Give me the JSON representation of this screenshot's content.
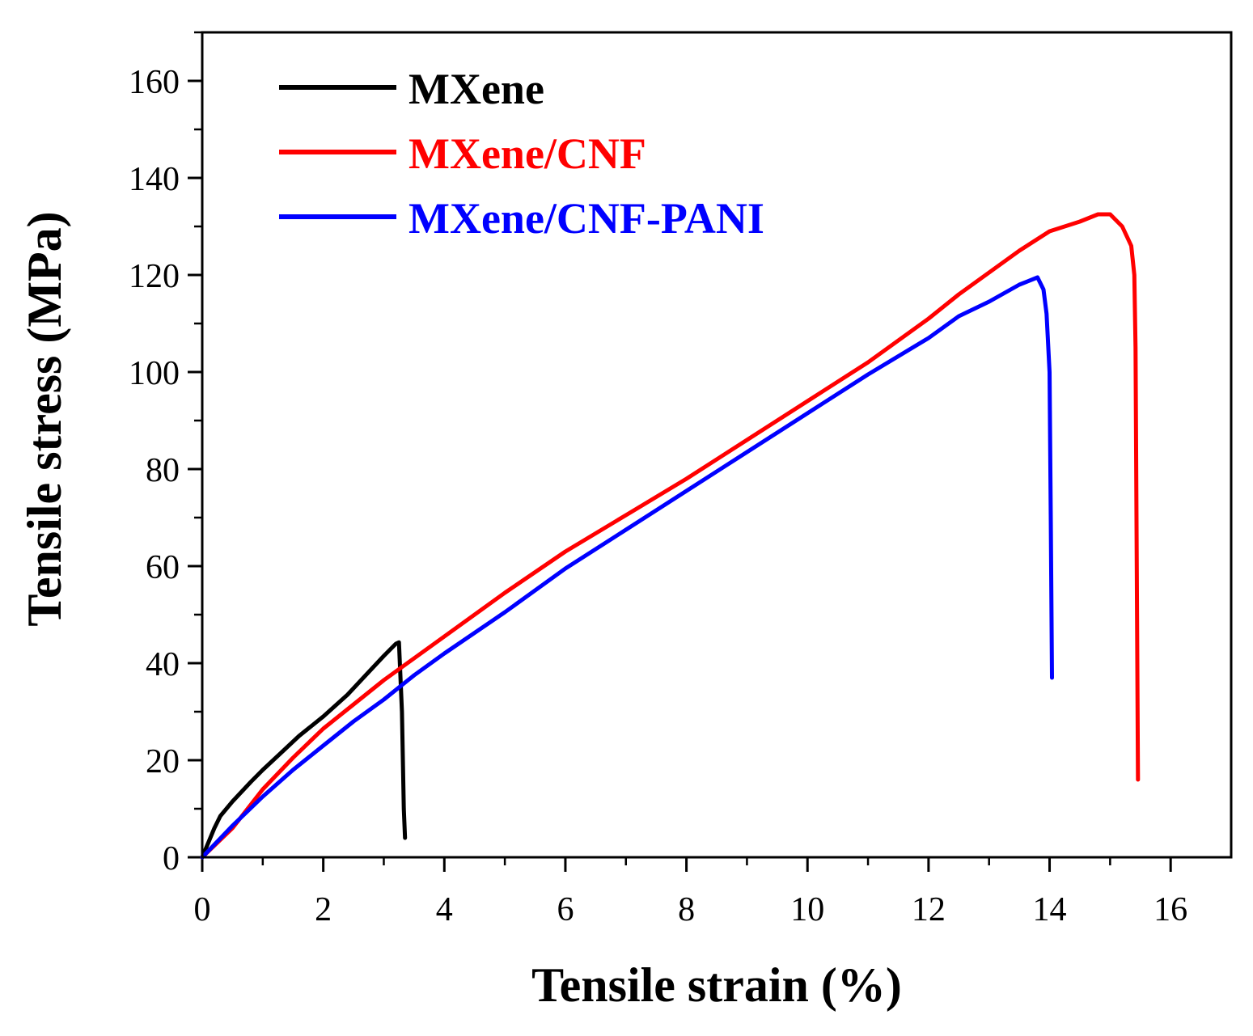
{
  "chart_data": {
    "type": "line",
    "title": "",
    "xlabel": "Tensile strain (%)",
    "ylabel": "Tensile stress (MPa)",
    "xlim": [
      0,
      17
    ],
    "ylim": [
      0,
      170
    ],
    "xticks": [
      0,
      2,
      4,
      6,
      8,
      10,
      12,
      14,
      16
    ],
    "yticks": [
      0,
      20,
      40,
      60,
      80,
      100,
      120,
      140,
      160
    ],
    "x_tick_labels": [
      "0",
      "2",
      "4",
      "6",
      "8",
      "10",
      "12",
      "14",
      "16"
    ],
    "y_tick_labels": [
      "0",
      "20",
      "40",
      "60",
      "80",
      "100",
      "120",
      "140",
      "160"
    ],
    "grid": false,
    "legend_position": "top-left",
    "series": [
      {
        "name": "MXene",
        "color": "#000000",
        "x": [
          0,
          0.1,
          0.2,
          0.3,
          0.5,
          0.8,
          1.0,
          1.3,
          1.6,
          2.0,
          2.4,
          2.7,
          3.0,
          3.2,
          3.25,
          3.3,
          3.33,
          3.35
        ],
        "y": [
          0,
          3,
          6,
          8.5,
          11.5,
          15.5,
          18,
          21.5,
          25,
          29,
          33.5,
          37.5,
          41.5,
          44,
          44.3,
          30,
          10,
          4
        ]
      },
      {
        "name": "MXene/CNF",
        "color": "#ff0000",
        "x": [
          0,
          0.5,
          1.0,
          1.5,
          2.0,
          2.5,
          3.0,
          3.5,
          4.0,
          5.0,
          6.0,
          7.0,
          8.0,
          9.0,
          10.0,
          11.0,
          12.0,
          12.5,
          13.0,
          13.5,
          14.0,
          14.5,
          14.8,
          15.0,
          15.2,
          15.35,
          15.4,
          15.42,
          15.44,
          15.46
        ],
        "y": [
          0,
          6,
          14,
          20.5,
          26.5,
          31.5,
          36.5,
          41,
          45.5,
          54.5,
          63,
          70.5,
          78,
          86,
          94,
          102,
          111,
          116,
          120.5,
          125,
          129,
          131,
          132.5,
          132.5,
          130,
          126,
          120,
          105,
          60,
          16
        ]
      },
      {
        "name": "MXene/CNF-PANI",
        "color": "#0000ff",
        "x": [
          0,
          0.5,
          1.0,
          1.5,
          2.0,
          2.5,
          3.0,
          3.5,
          4.0,
          5.0,
          6.0,
          7.0,
          8.0,
          9.0,
          10.0,
          11.0,
          12.0,
          12.5,
          13.0,
          13.5,
          13.8,
          13.9,
          13.95,
          14.0,
          14.02,
          14.04
        ],
        "y": [
          0,
          6.5,
          12.5,
          18,
          23,
          28,
          32.5,
          37.5,
          42,
          50.5,
          59.5,
          67.5,
          75.5,
          83.5,
          91.5,
          99.5,
          107,
          111.5,
          114.5,
          118,
          119.5,
          117,
          112,
          100,
          70,
          37
        ]
      }
    ]
  }
}
